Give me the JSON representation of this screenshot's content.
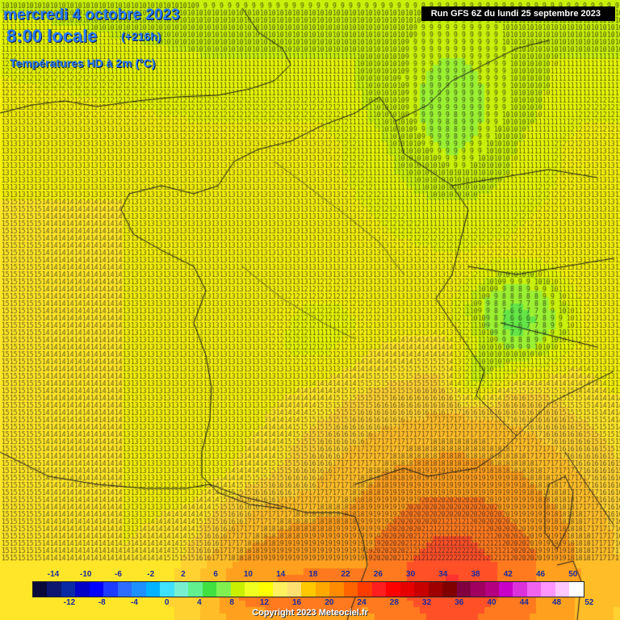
{
  "header": {
    "date": "mercredi 4 octobre 2023",
    "time": "8:00 locale",
    "offset": "(+216h)",
    "parameter": "Températures HD à 2m (°C)"
  },
  "run_label": "Run GFS 6Z du lundi 25 septembre 2023",
  "copyright": "Copyright 2023 Meteociel.fr",
  "legend": {
    "top_labels": [
      "-14",
      "-10",
      "-6",
      "-2",
      "2",
      "6",
      "10",
      "14",
      "18",
      "22",
      "26",
      "30",
      "34",
      "38",
      "42",
      "46",
      "50"
    ],
    "bottom_labels": [
      "-12",
      "-8",
      "-4",
      "0",
      "4",
      "8",
      "12",
      "16",
      "20",
      "24",
      "28",
      "32",
      "36",
      "40",
      "44",
      "48",
      "52"
    ],
    "colors": [
      "#0a0a3a",
      "#0d1770",
      "#0a2aa5",
      "#0000c8",
      "#0000ff",
      "#1e3cff",
      "#2d6cff",
      "#1e90ff",
      "#00b4ff",
      "#40e0ff",
      "#78f0d0",
      "#60f090",
      "#40e040",
      "#80f050",
      "#c8f000",
      "#f0ff20",
      "#ffff00",
      "#fff060",
      "#ffe070",
      "#ffc800",
      "#ffa800",
      "#ff8c00",
      "#ff6400",
      "#ff3c00",
      "#ff1e1e",
      "#ff0000",
      "#e60000",
      "#c80000",
      "#a00000",
      "#800000",
      "#800040",
      "#a00060",
      "#b40080",
      "#c800c8",
      "#dc32dc",
      "#f064f0",
      "#ff96ff",
      "#ffc8ff",
      "#ffffff"
    ]
  }
}
